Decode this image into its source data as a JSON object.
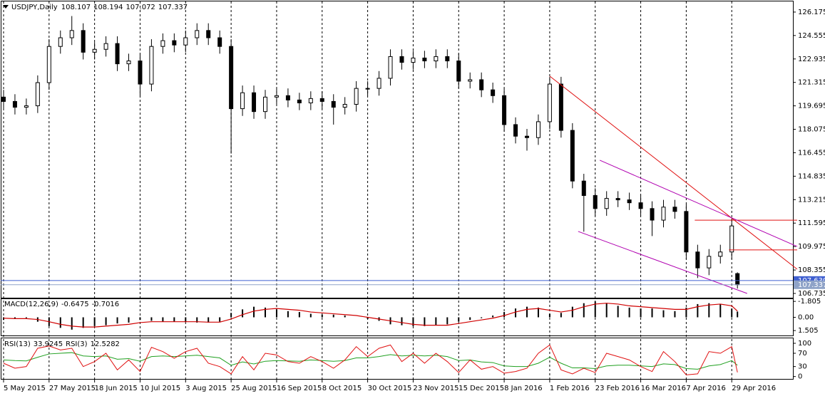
{
  "chart_data": [
    {
      "type": "candlestick",
      "title": "USDJPY,Daily",
      "x": [
        0,
        4,
        8,
        12,
        16,
        20,
        24,
        28,
        32,
        36,
        40,
        44,
        48,
        52,
        56,
        60,
        64,
        68,
        72,
        76,
        80,
        84,
        88,
        92,
        96,
        100,
        104,
        108,
        112,
        116,
        120,
        124,
        128,
        132,
        136,
        140,
        144,
        148,
        152,
        156,
        160,
        164,
        168,
        172,
        176,
        180,
        184,
        188,
        192,
        196,
        200,
        204,
        208,
        212,
        216,
        220,
        224,
        228,
        232,
        236,
        240,
        244,
        248,
        252,
        256,
        258
      ],
      "open": [
        120.3,
        120.0,
        119.6,
        119.7,
        121.3,
        123.8,
        124.4,
        124.9,
        123.4,
        123.6,
        124.0,
        122.6,
        122.8,
        121.2,
        123.8,
        124.2,
        123.9,
        124.4,
        124.9,
        124.4,
        123.8,
        119.5,
        120.6,
        119.3,
        120.3,
        120.4,
        120.1,
        119.9,
        120.2,
        120.0,
        119.6,
        119.8,
        120.9,
        120.9,
        121.6,
        123.1,
        122.7,
        123.0,
        122.8,
        123.1,
        122.8,
        121.4,
        121.5,
        120.8,
        120.4,
        118.4,
        117.6,
        117.5,
        118.6,
        121.2,
        118.0,
        114.5,
        113.5,
        112.6,
        113.3,
        113.2,
        113.0,
        112.6,
        111.8,
        112.7,
        112.4,
        109.6,
        108.5,
        109.3,
        109.6,
        108.107
      ],
      "high": [
        120.8,
        120.5,
        120.2,
        121.8,
        124.3,
        124.9,
        125.9,
        125.4,
        124.1,
        124.5,
        124.5,
        123.3,
        123.3,
        124.3,
        124.7,
        124.7,
        124.9,
        125.4,
        125.4,
        124.9,
        124.3,
        121.1,
        121.1,
        120.8,
        120.9,
        120.9,
        120.6,
        120.7,
        120.7,
        120.5,
        120.3,
        121.4,
        121.4,
        122.1,
        123.6,
        123.6,
        123.5,
        123.5,
        123.6,
        123.6,
        123.3,
        122.0,
        122.0,
        121.3,
        120.9,
        118.9,
        118.1,
        119.1,
        121.7,
        121.7,
        118.5,
        115.0,
        114.0,
        113.8,
        113.8,
        113.7,
        113.5,
        113.1,
        113.2,
        113.2,
        112.9,
        110.1,
        109.8,
        110.1,
        111.9,
        108.194
      ],
      "low": [
        119.5,
        119.1,
        119.1,
        119.2,
        120.8,
        123.3,
        123.9,
        122.9,
        122.9,
        123.1,
        122.1,
        122.1,
        120.4,
        120.7,
        123.3,
        123.4,
        123.4,
        123.9,
        123.9,
        123.3,
        116.4,
        119.0,
        118.8,
        118.8,
        119.8,
        119.6,
        119.4,
        119.4,
        119.5,
        118.4,
        119.1,
        119.3,
        120.4,
        120.4,
        121.1,
        122.2,
        122.2,
        122.3,
        122.3,
        122.3,
        120.9,
        120.9,
        120.3,
        119.9,
        117.9,
        117.1,
        116.6,
        117.0,
        118.1,
        117.5,
        114.0,
        111.0,
        112.1,
        112.1,
        112.7,
        112.5,
        112.1,
        110.7,
        111.3,
        111.9,
        109.1,
        107.8,
        108.0,
        108.8,
        109.1,
        107.072
      ],
      "close": [
        120.0,
        119.6,
        119.7,
        121.3,
        123.8,
        124.4,
        124.9,
        123.4,
        123.6,
        124.0,
        122.6,
        122.8,
        121.2,
        123.8,
        124.2,
        123.9,
        124.4,
        124.9,
        124.4,
        123.8,
        119.5,
        120.6,
        119.3,
        120.3,
        120.4,
        120.1,
        119.9,
        120.2,
        120.0,
        119.6,
        119.8,
        120.9,
        120.9,
        121.6,
        123.1,
        122.7,
        123.0,
        122.8,
        123.1,
        122.8,
        121.4,
        121.5,
        120.8,
        120.4,
        118.4,
        117.6,
        117.5,
        118.6,
        121.2,
        118.0,
        114.5,
        113.5,
        112.6,
        113.3,
        113.2,
        113.0,
        112.6,
        111.8,
        112.7,
        112.4,
        109.6,
        108.5,
        109.3,
        109.6,
        111.4,
        107.337
      ],
      "xlim": [
        -1,
        277
      ],
      "xticks": [
        {
          "value": 0,
          "label": "5 May 2015"
        },
        {
          "value": 16,
          "label": "27 May 2015"
        },
        {
          "value": 32,
          "label": "18 Jun 2015"
        },
        {
          "value": 48,
          "label": "10 Jul 2015"
        },
        {
          "value": 64,
          "label": "3 Aug 2015"
        },
        {
          "value": 80,
          "label": "25 Aug 2015"
        },
        {
          "value": 96,
          "label": "16 Sep 2015"
        },
        {
          "value": 112,
          "label": "8 Oct 2015"
        },
        {
          "value": 128,
          "label": "30 Oct 2015"
        },
        {
          "value": 144,
          "label": "23 Nov 2015"
        },
        {
          "value": 160,
          "label": "15 Dec 2015"
        },
        {
          "value": 176,
          "label": "8 Jan 2016"
        },
        {
          "value": 192,
          "label": "1 Feb 2016"
        },
        {
          "value": 208,
          "label": "23 Feb 2016"
        },
        {
          "value": 224,
          "label": "16 Mar 2016"
        },
        {
          "value": 240,
          "label": "7 Apr 2016"
        },
        {
          "value": 256,
          "label": "29 Apr 2016"
        }
      ],
      "ylim": [
        106.44,
        126.91
      ],
      "yticks": [
        126.175,
        124.555,
        122.935,
        121.315,
        119.695,
        118.075,
        116.455,
        114.835,
        113.215,
        111.595,
        109.975,
        108.355,
        106.735
      ],
      "grid": true,
      "price_lines": [
        {
          "value": 107.63,
          "label": "107.630",
          "color": "#3f5fd0"
        },
        {
          "value": 107.337,
          "color": "#8fa3c8"
        }
      ],
      "trendlines": [
        {
          "x": [
            192,
            279
          ],
          "y": [
            121.75,
            108.41
          ],
          "color": "#e01010"
        },
        {
          "x": [
            243,
            279
          ],
          "y": [
            111.8,
            111.8
          ],
          "color": "#e01010"
        },
        {
          "x": [
            255,
            279
          ],
          "y": [
            109.74,
            109.74
          ],
          "color": "#e01010"
        },
        {
          "x": [
            209.6,
            279
          ],
          "y": [
            115.94,
            109.98
          ],
          "color": "#b000b0"
        },
        {
          "x": [
            202,
            261.4
          ],
          "y": [
            111.02,
            106.735
          ],
          "color": "#b000b0"
        }
      ]
    },
    {
      "type": "macd",
      "title": "MACD(12,26,9)",
      "ylim": [
        1.98,
        -2.06
      ],
      "yticks": [
        1.505,
        {
          "value": 0,
          "label": "0.00"
        },
        -1.805
      ],
      "series": [
        {
          "color": "#000000",
          "values": [
            0.3,
            0.2,
            0.1,
            0.5,
            1.0,
            1.2,
            1.4,
            1.2,
            1.0,
            0.9,
            0.7,
            0.6,
            0.3,
            0.4,
            0.5,
            0.5,
            0.5,
            0.6,
            0.6,
            0.5,
            -0.5,
            -0.9,
            -1.2,
            -1.1,
            -0.9,
            -0.7,
            -0.6,
            -0.4,
            -0.3,
            -0.3,
            -0.2,
            0.0,
            0.2,
            0.4,
            0.8,
            0.9,
            1.0,
            1.0,
            0.9,
            0.8,
            0.5,
            0.3,
            0.1,
            -0.2,
            -0.6,
            -1.0,
            -1.2,
            -1.1,
            -0.4,
            -0.5,
            -1.2,
            -1.6,
            -1.8,
            -1.6,
            -1.3,
            -1.1,
            -1.0,
            -1.0,
            -0.8,
            -0.7,
            -1.1,
            -1.5,
            -1.6,
            -1.5,
            -1.0,
            -0.6475
          ]
        },
        {
          "color": "#d00000",
          "values": [
            0.1,
            0.15,
            0.15,
            0.25,
            0.5,
            0.8,
            1.0,
            1.1,
            1.1,
            1.0,
            0.9,
            0.8,
            0.6,
            0.5,
            0.5,
            0.5,
            0.5,
            0.5,
            0.55,
            0.55,
            0.2,
            -0.3,
            -0.7,
            -0.9,
            -1.0,
            -0.9,
            -0.8,
            -0.6,
            -0.5,
            -0.4,
            -0.3,
            -0.2,
            0.0,
            0.2,
            0.4,
            0.6,
            0.8,
            0.9,
            0.9,
            0.9,
            0.7,
            0.5,
            0.3,
            0.1,
            -0.2,
            -0.6,
            -0.9,
            -1.0,
            -0.8,
            -0.6,
            -0.8,
            -1.2,
            -1.5,
            -1.6,
            -1.5,
            -1.3,
            -1.2,
            -1.1,
            -1.0,
            -0.9,
            -0.9,
            -1.2,
            -1.4,
            -1.5,
            -1.3,
            -0.7016
          ]
        }
      ]
    },
    {
      "type": "rsi",
      "ylim": [
        -5,
        115
      ],
      "yticks": [
        100,
        70,
        30,
        0
      ],
      "series": [
        {
          "name": "RSI(13)",
          "color": "#20a020",
          "values": [
            50,
            48,
            47,
            58,
            68,
            70,
            72,
            62,
            60,
            62,
            52,
            54,
            46,
            60,
            62,
            60,
            62,
            64,
            60,
            56,
            34,
            44,
            38,
            46,
            48,
            47,
            46,
            50,
            48,
            46,
            48,
            56,
            56,
            60,
            66,
            62,
            64,
            62,
            64,
            60,
            48,
            50,
            44,
            42,
            32,
            30,
            30,
            40,
            58,
            40,
            26,
            26,
            24,
            32,
            34,
            34,
            32,
            30,
            38,
            36,
            24,
            22,
            32,
            36,
            48,
            33.9245
          ]
        },
        {
          "name": "RSI(3)",
          "color": "#e01010",
          "values": [
            40,
            25,
            30,
            85,
            92,
            80,
            85,
            30,
            45,
            70,
            20,
            50,
            15,
            88,
            75,
            55,
            75,
            85,
            40,
            30,
            8,
            60,
            20,
            70,
            65,
            45,
            40,
            60,
            45,
            25,
            50,
            90,
            60,
            85,
            95,
            45,
            70,
            40,
            70,
            45,
            12,
            50,
            22,
            30,
            10,
            15,
            25,
            70,
            95,
            20,
            8,
            25,
            12,
            70,
            60,
            50,
            30,
            15,
            75,
            45,
            5,
            8,
            75,
            70,
            90,
            12.5282
          ]
        }
      ]
    }
  ]
}
